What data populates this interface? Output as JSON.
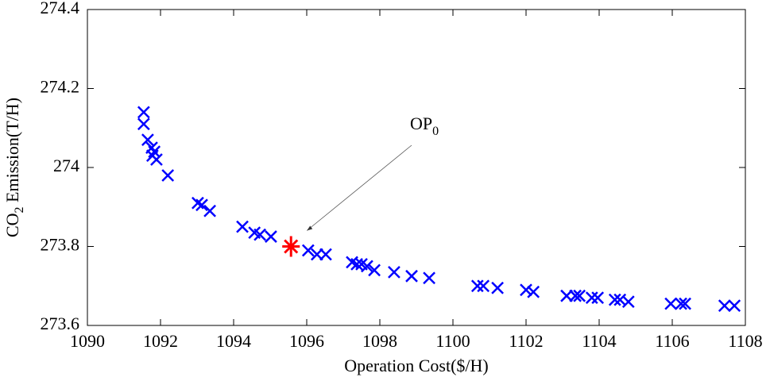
{
  "chart_data": {
    "type": "scatter",
    "xlabel": "Operation Cost($/H)",
    "ylabel": {
      "text": "CO",
      "sub": "2",
      "rest": " Emission(T/H)"
    },
    "annotation": {
      "text": "OP",
      "sub": "0"
    },
    "xlim": [
      1090,
      1108
    ],
    "xticks": [
      1090,
      1092,
      1094,
      1096,
      1098,
      1100,
      1102,
      1104,
      1106,
      1108
    ],
    "ylim": [
      273.6,
      274.4
    ],
    "yticks": [
      273.6,
      273.8,
      274,
      274.2,
      274.4
    ],
    "series": [
      {
        "color": "#0000ff",
        "marker": "x",
        "x": [
          1091.54,
          1091.54,
          1091.65,
          1091.76,
          1091.83,
          1091.78,
          1091.89,
          1092.2,
          1093.02,
          1093.13,
          1093.35,
          1094.24,
          1094.57,
          1094.72,
          1095.02,
          1096.04,
          1096.28,
          1096.52,
          1097.24,
          1097.37,
          1097.5,
          1097.65,
          1097.85,
          1098.39,
          1098.87,
          1099.35,
          1100.67,
          1100.83,
          1101.22,
          1102.0,
          1102.2,
          1103.11,
          1103.35,
          1103.46,
          1103.8,
          1103.96,
          1104.43,
          1104.57,
          1104.8,
          1105.96,
          1106.24,
          1106.35,
          1107.43,
          1107.7
        ],
        "values": [
          274.14,
          274.11,
          274.07,
          274.05,
          274.04,
          274.03,
          274.02,
          273.98,
          273.91,
          273.905,
          273.89,
          273.85,
          273.835,
          273.83,
          273.825,
          273.79,
          273.78,
          273.78,
          273.76,
          273.755,
          273.755,
          273.75,
          273.74,
          273.735,
          273.725,
          273.72,
          273.7,
          273.7,
          273.695,
          273.69,
          273.685,
          273.675,
          273.675,
          273.675,
          273.67,
          273.67,
          273.665,
          273.665,
          273.66,
          273.655,
          273.655,
          273.655,
          273.65,
          273.65
        ]
      },
      {
        "color": "#ff0000",
        "marker": "star",
        "x": [
          1095.57
        ],
        "values": [
          273.8
        ]
      }
    ]
  }
}
